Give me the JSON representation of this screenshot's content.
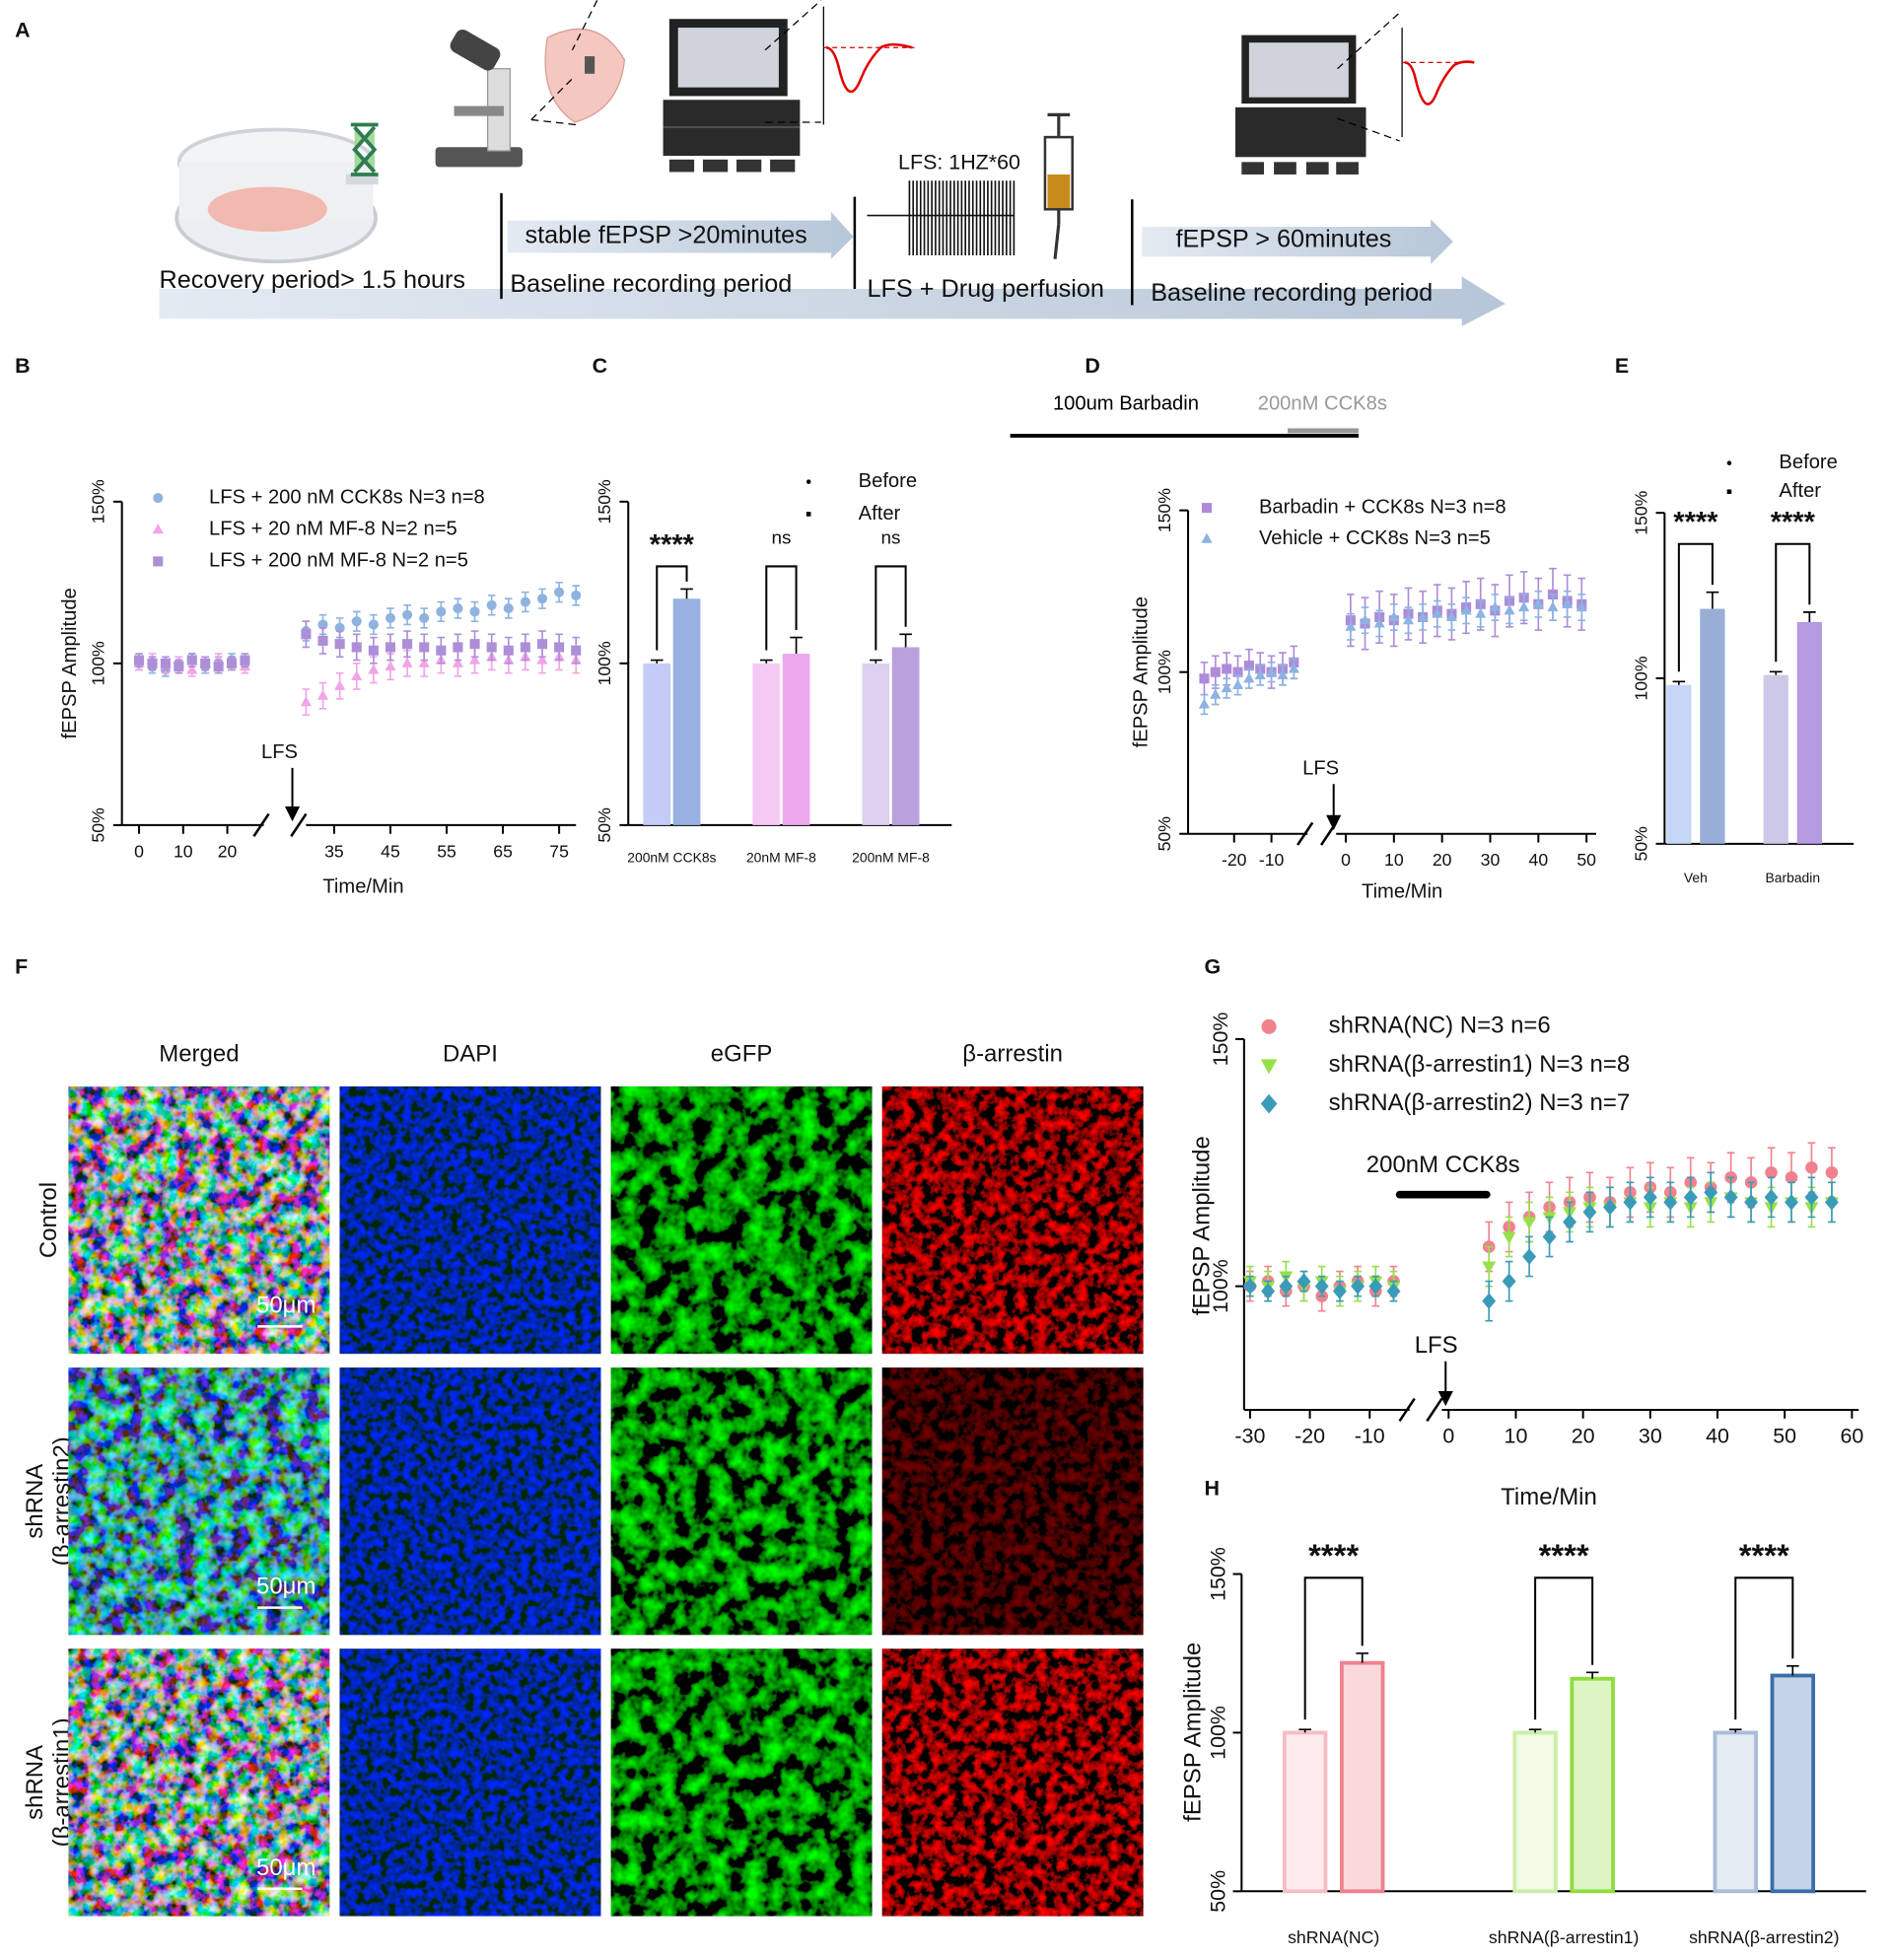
{
  "schematic": {
    "panel": "A",
    "labels": [
      "Recovery period> 1.5 hours",
      "stable fEPSP >20minutes",
      "Baseline recording period",
      "LFS: 1HZ*60",
      "LFS + Drug perfusion",
      "fEPSP > 60minutes",
      "Baseline recording period"
    ]
  },
  "micrographs": {
    "panel": "F",
    "columns": [
      "Merged",
      "DAPI",
      "eGFP",
      "β-arrestin"
    ],
    "rows": [
      [
        "Control"
      ],
      [
        "shRNA",
        "(β-arrestin2)"
      ],
      [
        "shRNA",
        "(β-arrestin1)"
      ]
    ],
    "scale_bar": "50μm"
  },
  "chart_data": [
    {
      "panel": "B",
      "type": "line",
      "ylabel": "fEPSP Amplitude",
      "xlabel": "Time/Min",
      "annotations": [
        "LFS"
      ],
      "ylim": [
        50,
        150
      ],
      "yticks": [
        {
          "value": 50,
          "label": "50%"
        },
        {
          "value": 100,
          "label": "100%"
        },
        {
          "value": 150,
          "label": "150%"
        }
      ],
      "x_segments": [
        {
          "xlim": [
            -0.5,
            26
          ],
          "xticks": [
            0,
            10,
            20
          ]
        },
        {
          "xlim": [
            30,
            78
          ],
          "xticks": [
            35,
            45,
            55,
            65,
            75
          ]
        }
      ],
      "x": [
        0,
        3,
        6,
        9,
        12,
        15,
        18,
        21,
        24,
        30,
        33,
        36,
        39,
        42,
        45,
        48,
        51,
        54,
        57,
        60,
        63,
        66,
        69,
        72,
        75,
        78
      ],
      "series": [
        {
          "name": "LFS + 200 nM CCK8s N=3 n=8",
          "color": "#8fb3df",
          "marker": "circle",
          "values": [
            100,
            99,
            98,
            100,
            101,
            99,
            100,
            101,
            100,
            110,
            112,
            111,
            113,
            112,
            114,
            115,
            114,
            116,
            117,
            116,
            118,
            117,
            119,
            120,
            122,
            121
          ],
          "errors": [
            2,
            2,
            2,
            2,
            2,
            2,
            2,
            2,
            2,
            3,
            3,
            3,
            3,
            3,
            3,
            3,
            3,
            3,
            3,
            3,
            3,
            3,
            3,
            3,
            3,
            3
          ]
        },
        {
          "name": "LFS + 20 nM MF-8 N=2 n=5",
          "color": "#f2a4e6",
          "marker": "triangle",
          "values": [
            100,
            101,
            99,
            100,
            98,
            100,
            101,
            100,
            99,
            88,
            90,
            93,
            96,
            98,
            99,
            100,
            100,
            101,
            100,
            101,
            102,
            101,
            102,
            101,
            102,
            101
          ],
          "errors": [
            2,
            2,
            2,
            2,
            2,
            2,
            2,
            2,
            2,
            4,
            4,
            4,
            4,
            4,
            4,
            4,
            4,
            4,
            4,
            4,
            4,
            4,
            4,
            4,
            4,
            4
          ]
        },
        {
          "name": "LFS + 200 nM MF-8 N=2 n=5",
          "color": "#ad8fd8",
          "marker": "square",
          "values": [
            101,
            100,
            100,
            99,
            101,
            100,
            99,
            100,
            101,
            109,
            107,
            106,
            105,
            104,
            105,
            106,
            105,
            104,
            105,
            106,
            105,
            104,
            105,
            106,
            105,
            104
          ],
          "errors": [
            2,
            2,
            2,
            2,
            2,
            2,
            2,
            2,
            2,
            4,
            4,
            4,
            4,
            4,
            4,
            4,
            4,
            4,
            4,
            4,
            4,
            4,
            4,
            4,
            4,
            4
          ]
        }
      ]
    },
    {
      "panel": "C",
      "type": "bar",
      "categories": [
        "200nM CCK8s",
        "20nM MF-8",
        "200nM MF-8"
      ],
      "ylim": [
        50,
        150
      ],
      "yticks": [
        {
          "value": 50,
          "label": "50%"
        },
        {
          "value": 100,
          "label": "100%"
        },
        {
          "value": 150,
          "label": "150%"
        }
      ],
      "series": [
        {
          "name": "Before",
          "marker": "circle",
          "colors": [
            "#c3cbf7",
            "#f6c9f3",
            "#ddd1ee"
          ],
          "values": [
            100,
            100,
            100
          ],
          "errors": [
            1,
            1,
            1
          ]
        },
        {
          "name": "After",
          "marker": "square",
          "colors": [
            "#9ab0e2",
            "#eda9ee",
            "#b9a1dd"
          ],
          "values": [
            120,
            103,
            105
          ],
          "errors": [
            3,
            5,
            4
          ]
        }
      ],
      "significance": [
        "****",
        "ns",
        "ns"
      ]
    },
    {
      "panel": "D",
      "type": "line",
      "ylabel": "fEPSP Amplitude",
      "xlabel": "Time/Min",
      "annotations": [
        "LFS"
      ],
      "headers": [
        {
          "text": "100um Barbadin",
          "color": "#000000"
        },
        {
          "text": "200nM CCK8s",
          "color": "#999999"
        }
      ],
      "ylim": [
        50,
        150
      ],
      "yticks": [
        {
          "value": 50,
          "label": "50%"
        },
        {
          "value": 100,
          "label": "100%"
        },
        {
          "value": 150,
          "label": "150%"
        }
      ],
      "x_segments": [
        {
          "xlim": [
            -30,
            -3
          ],
          "xticks": [
            -20,
            -10
          ]
        },
        {
          "xlim": [
            -2,
            52
          ],
          "xticks": [
            0,
            10,
            20,
            30,
            40,
            50
          ]
        }
      ],
      "x": [
        -28,
        -25,
        -22,
        -19,
        -16,
        -13,
        -10,
        -7,
        -4,
        1,
        4,
        7,
        10,
        13,
        16,
        19,
        22,
        25,
        28,
        31,
        34,
        37,
        40,
        43,
        46,
        49
      ],
      "series": [
        {
          "name": "Barbadin + CCK8s N=3 n=8",
          "color": "#ae8bd8",
          "marker": "square",
          "values": [
            98,
            100,
            101,
            100,
            102,
            101,
            100,
            101,
            103,
            116,
            115,
            117,
            116,
            118,
            117,
            119,
            118,
            120,
            121,
            119,
            122,
            123,
            121,
            124,
            122,
            121
          ],
          "errors": [
            5,
            5,
            5,
            5,
            5,
            5,
            5,
            5,
            5,
            8,
            8,
            8,
            8,
            8,
            8,
            8,
            8,
            8,
            8,
            8,
            8,
            8,
            8,
            8,
            8,
            8
          ]
        },
        {
          "name": "Vehicle + CCK8s N=3 n=5",
          "color": "#8cb3e2",
          "marker": "triangle",
          "values": [
            90,
            93,
            95,
            96,
            98,
            99,
            100,
            99,
            101,
            114,
            116,
            115,
            117,
            116,
            117,
            118,
            117,
            119,
            118,
            120,
            119,
            120,
            121,
            120,
            121,
            120
          ],
          "errors": [
            3,
            3,
            3,
            3,
            3,
            3,
            3,
            3,
            3,
            4,
            4,
            4,
            4,
            4,
            4,
            4,
            4,
            4,
            4,
            4,
            4,
            4,
            4,
            4,
            4,
            4
          ]
        }
      ]
    },
    {
      "panel": "E",
      "type": "bar",
      "categories": [
        "Veh",
        "Barbadin"
      ],
      "ylim": [
        50,
        150
      ],
      "yticks": [
        {
          "value": 50,
          "label": "50%"
        },
        {
          "value": 100,
          "label": "100%"
        },
        {
          "value": 150,
          "label": "150%"
        }
      ],
      "series": [
        {
          "name": "Before",
          "marker": "circle",
          "colors": [
            "#c6d6f6",
            "#ccc8e8"
          ],
          "values": [
            98,
            101
          ],
          "errors": [
            1,
            1
          ]
        },
        {
          "name": "After",
          "marker": "square",
          "colors": [
            "#98aed6",
            "#b49ae0"
          ],
          "values": [
            121,
            117
          ],
          "errors": [
            5,
            3
          ]
        }
      ],
      "significance": [
        "****",
        "****"
      ]
    },
    {
      "panel": "G",
      "type": "line",
      "ylabel": "fEPSP Amplitude",
      "xlabel": "Time/Min",
      "annotations": [
        "LFS",
        "200nM CCK8s"
      ],
      "ylim": [
        75,
        150
      ],
      "yticks": [
        {
          "value": 100,
          "label": "100%"
        },
        {
          "value": 150,
          "label": "150%"
        }
      ],
      "x_segments": [
        {
          "xlim": [
            -31,
            -5
          ],
          "xticks": [
            -30,
            -20,
            -10
          ]
        },
        {
          "xlim": [
            -1,
            61
          ],
          "xticks": [
            0,
            10,
            20,
            30,
            40,
            50,
            60
          ]
        }
      ],
      "x": [
        -30,
        -27,
        -24,
        -21,
        -18,
        -15,
        -12,
        -9,
        -6,
        6,
        9,
        12,
        15,
        18,
        21,
        24,
        27,
        30,
        33,
        36,
        39,
        42,
        45,
        48,
        51,
        54,
        57
      ],
      "series": [
        {
          "name": "shRNA(NC) N=3 n=6",
          "color": "#f0828e",
          "marker": "circle",
          "values": [
            100,
            101,
            99,
            100,
            98,
            100,
            101,
            99,
            101,
            108,
            112,
            114,
            116,
            117,
            118,
            117,
            119,
            120,
            119,
            121,
            120,
            122,
            121,
            123,
            122,
            124,
            123
          ],
          "errors": [
            3,
            3,
            3,
            3,
            3,
            3,
            3,
            3,
            3,
            5,
            5,
            5,
            5,
            5,
            5,
            5,
            5,
            5,
            5,
            5,
            5,
            5,
            5,
            5,
            5,
            5,
            5
          ]
        },
        {
          "name": "shRNA(β-arrestin1) N=3 n=8",
          "color": "#97e04a",
          "marker": "triangle-down",
          "values": [
            101,
            100,
            102,
            100,
            101,
            99,
            100,
            101,
            100,
            104,
            110,
            113,
            114,
            115,
            116,
            116,
            117,
            116,
            117,
            116,
            117,
            118,
            117,
            116,
            117,
            116,
            117
          ],
          "errors": [
            3,
            3,
            3,
            3,
            3,
            3,
            3,
            3,
            3,
            4,
            4,
            4,
            4,
            4,
            4,
            4,
            4,
            4,
            4,
            4,
            4,
            4,
            4,
            4,
            4,
            4,
            4
          ]
        },
        {
          "name": "shRNA(β-arrestin2) N=3 n=7",
          "color": "#3a9bb8",
          "marker": "diamond",
          "values": [
            100,
            99,
            100,
            101,
            100,
            99,
            100,
            100,
            99,
            97,
            101,
            106,
            110,
            113,
            115,
            116,
            117,
            118,
            117,
            118,
            119,
            118,
            117,
            118,
            117,
            118,
            117
          ],
          "errors": [
            2,
            2,
            2,
            2,
            2,
            2,
            2,
            2,
            2,
            4,
            4,
            4,
            4,
            4,
            4,
            4,
            4,
            4,
            4,
            4,
            4,
            4,
            4,
            4,
            4,
            4,
            4
          ]
        }
      ]
    },
    {
      "panel": "H",
      "type": "bar",
      "ylabel": "fEPSP Amplitude",
      "outline": true,
      "categories": [
        "shRNA(NC)",
        "shRNA(β-arrestin1)",
        "shRNA(β-arrestin2)"
      ],
      "ylim": [
        50,
        150
      ],
      "yticks": [
        {
          "value": 50,
          "label": "50%"
        },
        {
          "value": 100,
          "label": "100%"
        },
        {
          "value": 150,
          "label": "150%"
        }
      ],
      "series": [
        {
          "colors": [
            "#f7bcc4",
            "#cdeea8",
            "#a9bcd8"
          ],
          "values": [
            100,
            100,
            100
          ],
          "errors": [
            1,
            1,
            1
          ]
        },
        {
          "colors": [
            "#f0808e",
            "#8fdc3c",
            "#3a6eaa"
          ],
          "values": [
            122,
            117,
            118
          ],
          "errors": [
            3,
            2,
            3
          ]
        }
      ],
      "significance": [
        "****",
        "****",
        "****"
      ]
    }
  ]
}
